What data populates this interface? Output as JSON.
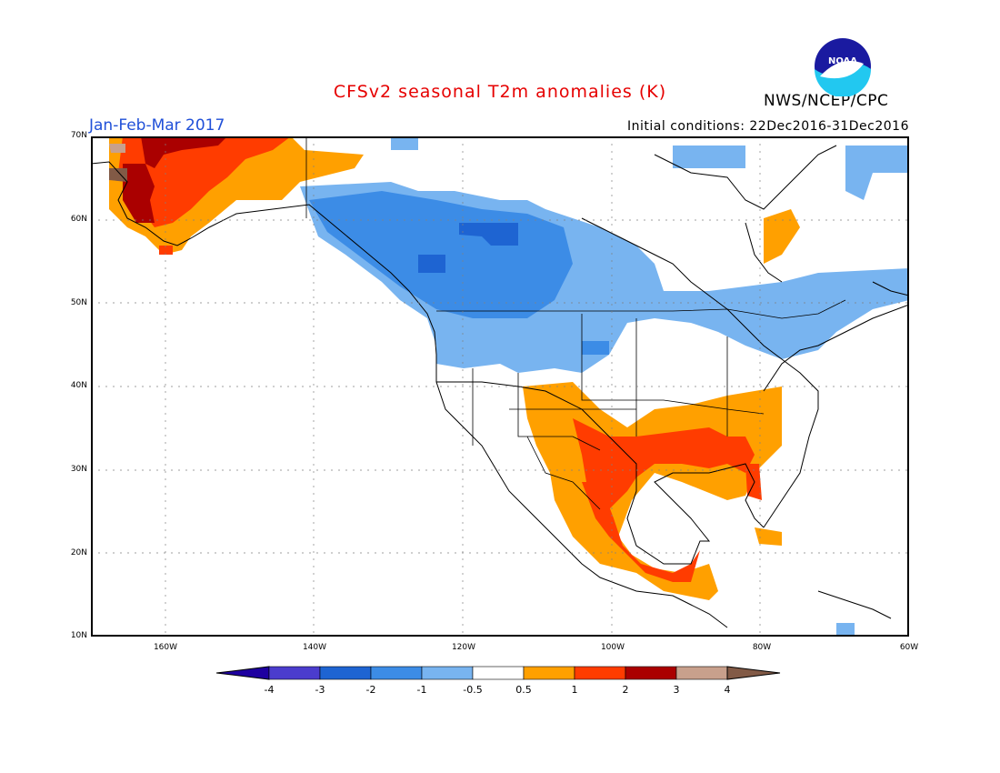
{
  "header": {
    "title": "CFSv2 seasonal T2m anomalies (K)",
    "period": "Jan-Feb-Mar 2017",
    "initial_conditions": "Initial conditions: 22Dec2016-31Dec2016",
    "org": "NWS/NCEP/CPC",
    "logo_text": "NOAA"
  },
  "map": {
    "lat_ticks": [
      "70N",
      "60N",
      "50N",
      "40N",
      "30N",
      "20N",
      "10N"
    ],
    "lon_ticks": [
      "160W",
      "140W",
      "120W",
      "100W",
      "80W",
      "60W"
    ],
    "lat_range": [
      10,
      70
    ],
    "lon_range": [
      -170,
      -60
    ],
    "grid": true
  },
  "legend": {
    "labels": [
      "-4",
      "-3",
      "-2",
      "-1",
      "-0.5",
      "0.5",
      "1",
      "2",
      "3",
      "4"
    ],
    "colors": [
      "#1e00a0",
      "#4b3ccd",
      "#1e64d2",
      "#3c8ce6",
      "#78b4f0",
      "#ffffff",
      "#ffa000",
      "#ff3c00",
      "#aa0000",
      "#c8a08c",
      "#825a46"
    ]
  },
  "colors": {
    "title": "#e60000",
    "period": "#2050d8",
    "cold_strong": "#1e64d2",
    "cold": "#3c8ce6",
    "cool": "#78b4f0",
    "warm": "#ffa000",
    "hot": "#ff3c00",
    "very_hot": "#aa0000",
    "extreme": "#c8a08c"
  }
}
